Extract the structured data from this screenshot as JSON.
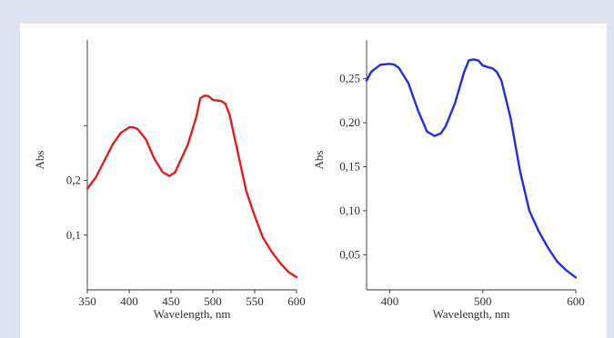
{
  "chart_data": [
    {
      "type": "line",
      "xlabel": "Wavelength, nm",
      "ylabel": "Abs",
      "xlim": [
        350,
        600
      ],
      "ylim": [
        0,
        0.45
      ],
      "x_ticks": [
        350,
        400,
        450,
        500,
        550,
        600
      ],
      "y_ticks": [
        {
          "value": 0.1,
          "label": "0,1"
        },
        {
          "value": 0.2,
          "label": "0,2"
        },
        {
          "value": 0.3,
          "label": ""
        }
      ],
      "series": [
        {
          "color": "#e02020",
          "x": [
            350,
            360,
            370,
            380,
            390,
            400,
            405,
            410,
            420,
            430,
            440,
            448,
            455,
            460,
            470,
            480,
            485,
            490,
            495,
            500,
            510,
            515,
            520,
            530,
            540,
            550,
            560,
            570,
            580,
            590,
            600
          ],
          "y": [
            0.185,
            0.205,
            0.235,
            0.265,
            0.287,
            0.297,
            0.297,
            0.294,
            0.275,
            0.24,
            0.215,
            0.208,
            0.215,
            0.232,
            0.265,
            0.315,
            0.35,
            0.355,
            0.354,
            0.347,
            0.345,
            0.34,
            0.32,
            0.25,
            0.18,
            0.135,
            0.095,
            0.07,
            0.05,
            0.033,
            0.023
          ]
        }
      ]
    },
    {
      "type": "line",
      "xlabel": "Wavelength, nm",
      "ylabel": "Abs",
      "xlim": [
        375,
        600
      ],
      "ylim": [
        0.01,
        0.29
      ],
      "x_ticks": [
        400,
        500,
        600
      ],
      "y_ticks": [
        {
          "value": 0.05,
          "label": "0,05"
        },
        {
          "value": 0.1,
          "label": "0,10"
        },
        {
          "value": 0.15,
          "label": "0,15"
        },
        {
          "value": 0.2,
          "label": "0,20"
        },
        {
          "value": 0.25,
          "label": "0,25"
        }
      ],
      "series": [
        {
          "color": "#2030e0",
          "x": [
            375,
            380,
            390,
            400,
            405,
            410,
            420,
            430,
            440,
            448,
            455,
            460,
            470,
            480,
            485,
            490,
            495,
            500,
            510,
            515,
            520,
            530,
            540,
            550,
            560,
            570,
            580,
            590,
            600
          ],
          "y": [
            0.248,
            0.258,
            0.266,
            0.267,
            0.266,
            0.262,
            0.245,
            0.215,
            0.19,
            0.185,
            0.188,
            0.196,
            0.222,
            0.258,
            0.271,
            0.272,
            0.271,
            0.265,
            0.262,
            0.258,
            0.248,
            0.205,
            0.145,
            0.1,
            0.077,
            0.058,
            0.042,
            0.032,
            0.024
          ]
        }
      ]
    }
  ]
}
